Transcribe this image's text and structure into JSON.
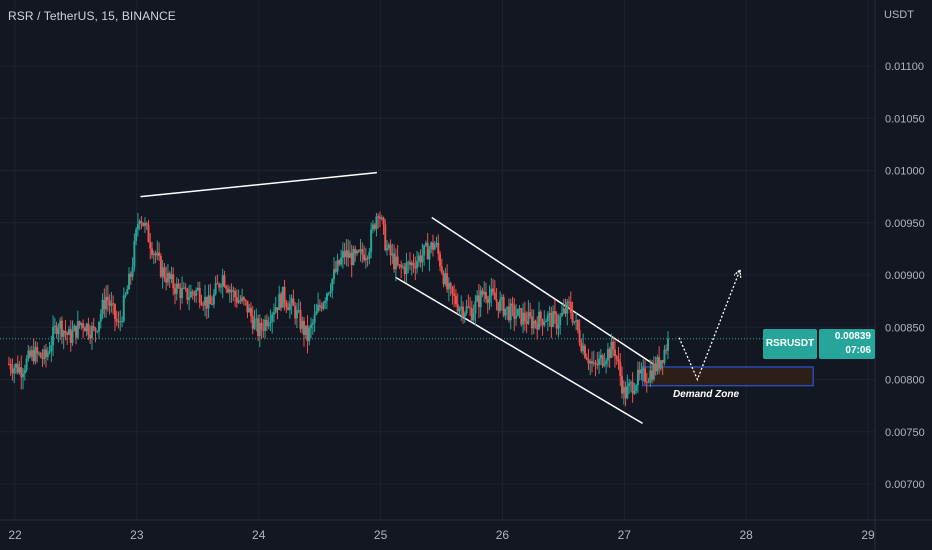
{
  "header": {
    "symbol_title": "RSR / TetherUS, 15, BINANCE"
  },
  "axis": {
    "unit": "USDT"
  },
  "price_tag": {
    "symbol": "RSRUSDT",
    "price": "0.00839",
    "countdown": "07:06"
  },
  "annotations": {
    "demand_zone_label": "Demand Zone"
  },
  "colors": {
    "background": "#131722",
    "up": "#26a69a",
    "down": "#ef5350",
    "grid": "#1e2230",
    "axis_text": "#b2b5be",
    "drawing": "#ffffff",
    "zone_border": "#2962ff",
    "zone_fill": "#2b1f17"
  },
  "chart_data": {
    "type": "candlestick",
    "title": "RSR / TetherUS, 15, BINANCE",
    "ylabel": "USDT",
    "ylim": [
      0.00675,
      0.01175
    ],
    "y_ticks": [
      "0.01100",
      "0.01050",
      "0.01000",
      "0.00950",
      "0.00900",
      "0.00850",
      "0.00800",
      "0.00750",
      "0.00700"
    ],
    "x_ticks": [
      "22",
      "23",
      "24",
      "25",
      "26",
      "27",
      "28",
      "29"
    ],
    "x_range": [
      22,
      29
    ],
    "grid": true,
    "last_price": 0.00839,
    "series": [
      {
        "name": "RSRUSDT",
        "path": [
          [
            21.95,
            0.00815
          ],
          [
            22.05,
            0.0081
          ],
          [
            22.15,
            0.00825
          ],
          [
            22.25,
            0.0082
          ],
          [
            22.35,
            0.00855
          ],
          [
            22.45,
            0.0084
          ],
          [
            22.55,
            0.00855
          ],
          [
            22.65,
            0.00845
          ],
          [
            22.75,
            0.0088
          ],
          [
            22.85,
            0.0085
          ],
          [
            22.95,
            0.009
          ],
          [
            23.02,
            0.0096
          ],
          [
            23.1,
            0.00935
          ],
          [
            23.2,
            0.00905
          ],
          [
            23.3,
            0.0089
          ],
          [
            23.4,
            0.0088
          ],
          [
            23.5,
            0.00885
          ],
          [
            23.6,
            0.0087
          ],
          [
            23.7,
            0.009
          ],
          [
            23.8,
            0.0088
          ],
          [
            23.9,
            0.0087
          ],
          [
            24.0,
            0.00845
          ],
          [
            24.1,
            0.00865
          ],
          [
            24.2,
            0.0088
          ],
          [
            24.3,
            0.00865
          ],
          [
            24.4,
            0.0084
          ],
          [
            24.5,
            0.0087
          ],
          [
            24.6,
            0.00895
          ],
          [
            24.7,
            0.0092
          ],
          [
            24.8,
            0.00915
          ],
          [
            24.9,
            0.00925
          ],
          [
            24.98,
            0.00965
          ],
          [
            25.05,
            0.00925
          ],
          [
            25.15,
            0.00905
          ],
          [
            25.25,
            0.0091
          ],
          [
            25.35,
            0.0092
          ],
          [
            25.45,
            0.0093
          ],
          [
            25.55,
            0.00885
          ],
          [
            25.65,
            0.0087
          ],
          [
            25.75,
            0.00865
          ],
          [
            25.85,
            0.00885
          ],
          [
            25.95,
            0.00875
          ],
          [
            26.05,
            0.00865
          ],
          [
            26.15,
            0.0086
          ],
          [
            26.25,
            0.00855
          ],
          [
            26.35,
            0.0086
          ],
          [
            26.45,
            0.00855
          ],
          [
            26.55,
            0.0087
          ],
          [
            26.65,
            0.00835
          ],
          [
            26.75,
            0.0081
          ],
          [
            26.85,
            0.00825
          ],
          [
            26.92,
            0.0083
          ],
          [
            27.0,
            0.00785
          ],
          [
            27.1,
            0.008
          ],
          [
            27.2,
            0.00805
          ],
          [
            27.28,
            0.00815
          ],
          [
            27.37,
            0.00839
          ]
        ]
      }
    ],
    "drawings": {
      "upper_trend_line": [
        [
          23.03,
          0.00975
        ],
        [
          24.97,
          0.00998
        ]
      ],
      "channel_upper": [
        [
          25.42,
          0.00955
        ],
        [
          27.3,
          0.0081
        ]
      ],
      "channel_lower": [
        [
          25.12,
          0.00898
        ],
        [
          27.15,
          0.00758
        ]
      ],
      "demand_zone": {
        "x": [
          27.15,
          28.55
        ],
        "y": [
          0.00794,
          0.00812
        ]
      },
      "projection_path": [
        [
          27.45,
          0.0084
        ],
        [
          27.6,
          0.008
        ],
        [
          27.95,
          0.00905
        ]
      ]
    }
  }
}
